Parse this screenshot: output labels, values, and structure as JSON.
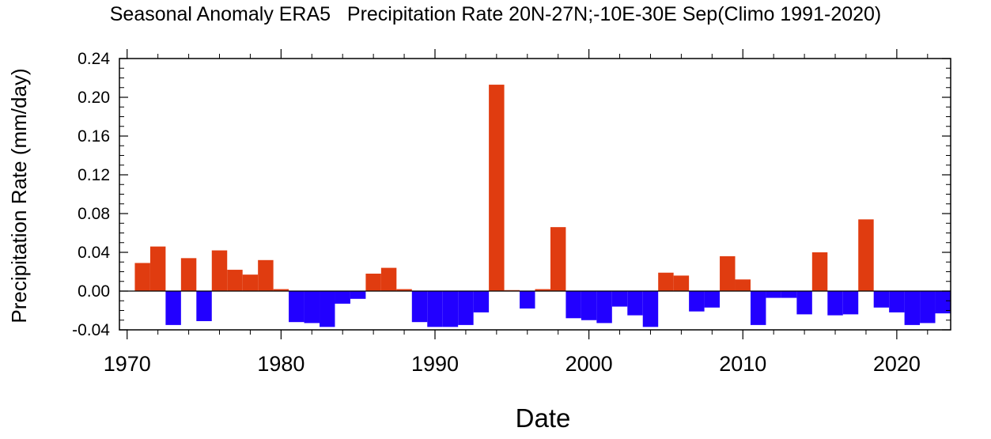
{
  "chart_data": {
    "type": "bar",
    "title": "Seasonal Anomaly ERA5   Precipitation Rate 20N-27N;-10E-30E Sep(Climo 1991-2020)",
    "xlabel": "Date",
    "ylabel": "Precipitation Rate (mm/day)",
    "xlim": [
      1969.5,
      2023.5
    ],
    "ylim": [
      -0.04,
      0.24
    ],
    "x_ticks": [
      1970,
      1980,
      1990,
      2000,
      2010,
      2020
    ],
    "y_ticks": [
      -0.04,
      0.0,
      0.04,
      0.08,
      0.12,
      0.16,
      0.2,
      0.24
    ],
    "y_tick_labels": [
      "-0.04",
      "0.00",
      "0.04",
      "0.08",
      "0.12",
      "0.16",
      "0.20",
      "0.24"
    ],
    "positive_color": "#e03c10",
    "negative_color": "#2200ff",
    "grid": false,
    "x": [
      1970,
      1971,
      1972,
      1973,
      1974,
      1975,
      1976,
      1977,
      1978,
      1979,
      1980,
      1981,
      1982,
      1983,
      1984,
      1985,
      1986,
      1987,
      1988,
      1989,
      1990,
      1991,
      1992,
      1993,
      1994,
      1995,
      1996,
      1997,
      1998,
      1999,
      2000,
      2001,
      2002,
      2003,
      2004,
      2005,
      2006,
      2007,
      2008,
      2009,
      2010,
      2011,
      2012,
      2013,
      2014,
      2015,
      2016,
      2017,
      2018,
      2019,
      2020,
      2021,
      2022,
      2023
    ],
    "values": [
      0.0,
      0.029,
      0.046,
      -0.035,
      0.034,
      -0.031,
      0.042,
      0.022,
      0.017,
      0.032,
      0.002,
      -0.032,
      -0.033,
      -0.037,
      -0.013,
      -0.008,
      0.018,
      0.024,
      0.002,
      -0.032,
      -0.037,
      -0.037,
      -0.035,
      -0.022,
      0.213,
      0.001,
      -0.018,
      0.002,
      0.066,
      -0.028,
      -0.03,
      -0.033,
      -0.016,
      -0.025,
      -0.037,
      0.019,
      0.016,
      -0.021,
      -0.017,
      0.036,
      0.012,
      -0.035,
      -0.007,
      -0.007,
      -0.024,
      0.04,
      -0.025,
      -0.024,
      0.074,
      -0.017,
      -0.022,
      -0.035,
      -0.033,
      -0.023
    ]
  }
}
